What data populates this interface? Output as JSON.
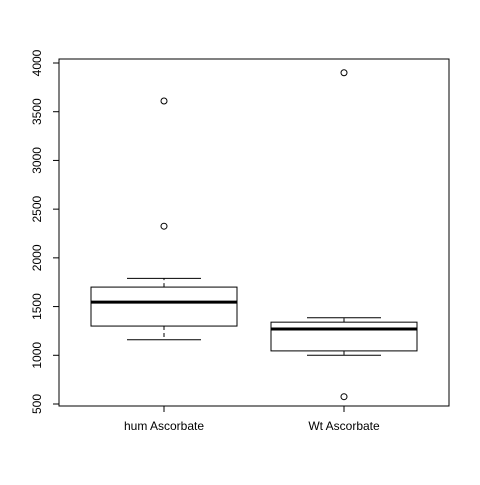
{
  "chart_data": {
    "type": "box",
    "title": "",
    "xlabel": "",
    "ylabel": "",
    "ylim": [
      500,
      4000
    ],
    "yticks": [
      500,
      1000,
      1500,
      2000,
      2500,
      3000,
      3500,
      4000
    ],
    "ytick_labels": [
      "500",
      "1000",
      "1500",
      "2000",
      "2500",
      "3000",
      "3500",
      "4000"
    ],
    "categories": [
      "hum Ascorbate",
      "Wt Ascorbate"
    ],
    "boxes": [
      {
        "category": "hum Ascorbate",
        "whisker_low": 1160,
        "q1": 1300,
        "median": 1545,
        "q3": 1700,
        "whisker_high": 1790,
        "outliers": [
          2325,
          3610
        ]
      },
      {
        "category": "Wt Ascorbate",
        "whisker_low": 1000,
        "q1": 1045,
        "median": 1270,
        "q3": 1340,
        "whisker_high": 1385,
        "outliers": [
          575,
          3900
        ]
      }
    ],
    "grid": false,
    "legend": "none"
  }
}
